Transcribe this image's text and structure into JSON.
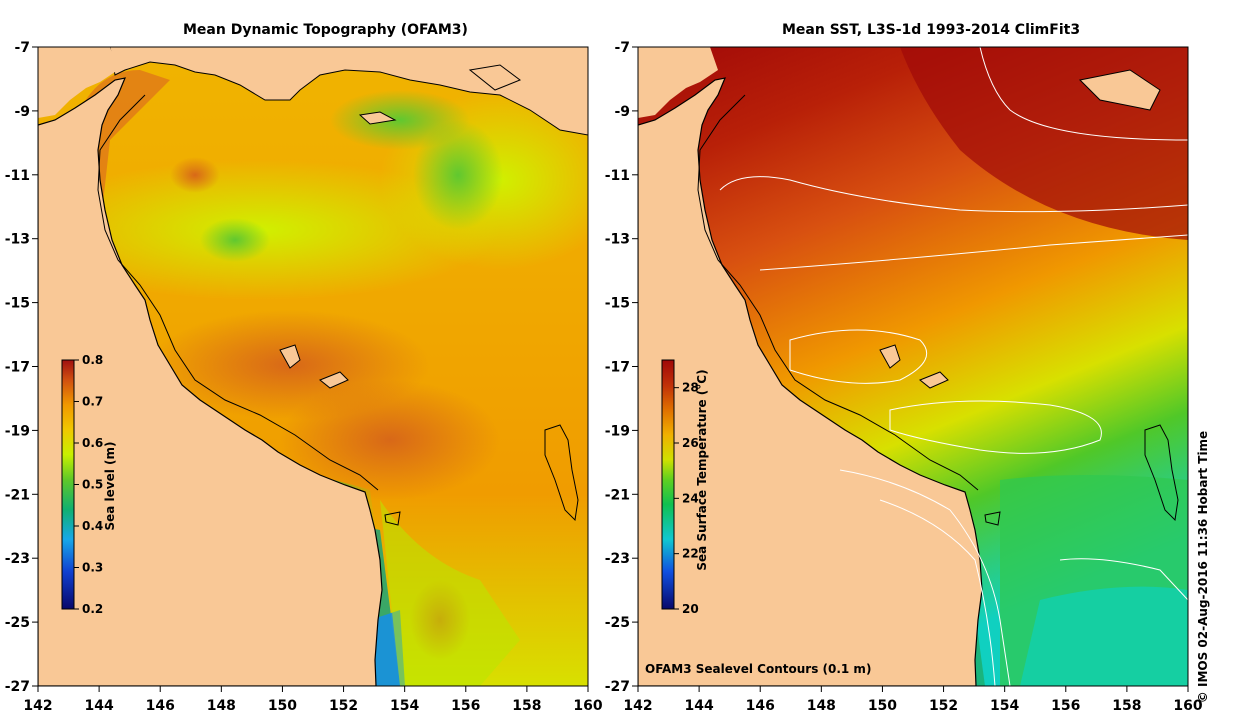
{
  "panels": [
    {
      "title": "Mean Dynamic Topography (OFAM3)",
      "colorbar": {
        "label": "Sea level (m)",
        "ticks": [
          "0.8",
          "0.7",
          "0.6",
          "0.5",
          "0.4",
          "0.3",
          "0.2"
        ]
      }
    },
    {
      "title": "Mean SST, L3S-1d 1993-2014 ClimFit3",
      "colorbar": {
        "label": "Sea Surface Temperature (°C)",
        "ticks": [
          "28",
          "26",
          "24",
          "22",
          "20"
        ]
      },
      "note": "OFAM3 Sealevel Contours (0.1 m)"
    }
  ],
  "axes": {
    "x_ticks": [
      "142",
      "144",
      "146",
      "148",
      "150",
      "152",
      "154",
      "156",
      "158",
      "160"
    ],
    "y_ticks": [
      "-7",
      "-9",
      "-11",
      "-13",
      "-15",
      "-17",
      "-19",
      "-21",
      "-23",
      "-25",
      "-27"
    ]
  },
  "credit": "© IMOS 02-Aug-2016 11:36 Hobart Time",
  "colors": {
    "land": "#F9C896",
    "sea_level_scale": [
      "#08086a",
      "#1040d0",
      "#18a8e8",
      "#10b070",
      "#50c030",
      "#c8f000",
      "#f0c800",
      "#f09800",
      "#d86010",
      "#a01010"
    ],
    "sst_scale": [
      "#08086a",
      "#1050e0",
      "#10c8d0",
      "#10c050",
      "#60d020",
      "#d0e000",
      "#f0a800",
      "#e07000",
      "#c03008",
      "#a00808"
    ]
  }
}
